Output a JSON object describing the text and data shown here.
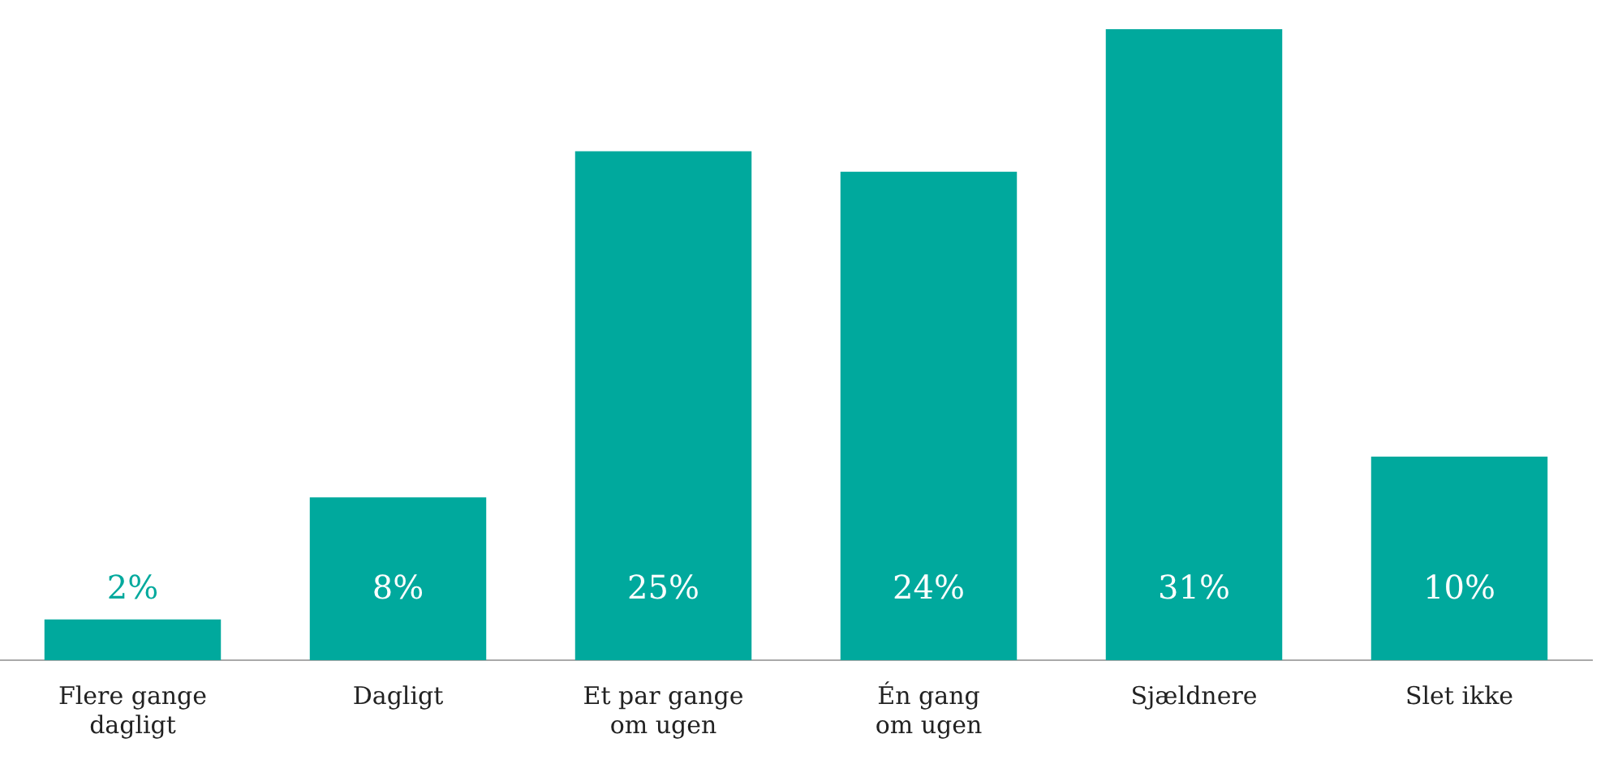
{
  "chart_data": {
    "type": "bar",
    "categories": [
      "Flere gange\ndagligt",
      "Dagligt",
      "Et par gange\nom ugen",
      "Én gang\nom ugen",
      "Sjældnere",
      "Slet ikke"
    ],
    "values": [
      2,
      8,
      25,
      24,
      31,
      10
    ],
    "value_labels": [
      "2%",
      "8%",
      "25%",
      "24%",
      "31%",
      "10%"
    ],
    "color": "#00a99d",
    "grid": false,
    "legend": false
  }
}
